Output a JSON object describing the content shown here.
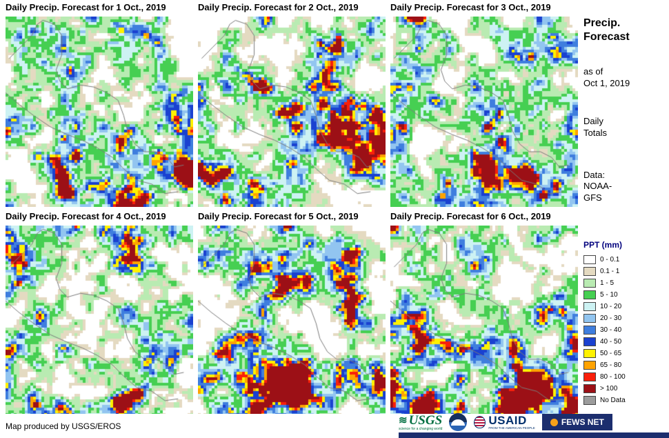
{
  "panels": [
    {
      "title": "Daily Precip. Forecast for 1 Oct., 2019"
    },
    {
      "title": "Daily Precip. Forecast for 2 Oct., 2019"
    },
    {
      "title": "Daily Precip. Forecast for 3 Oct., 2019"
    },
    {
      "title": "Daily Precip. Forecast for 4 Oct., 2019"
    },
    {
      "title": "Daily Precip. Forecast for 5 Oct., 2019"
    },
    {
      "title": "Daily Precip. Forecast for 6 Oct., 2019"
    }
  ],
  "sidebar": {
    "title_lines": [
      "Precip.",
      "Forecast"
    ],
    "as_of_lines": [
      "as of",
      "Oct 1, 2019"
    ],
    "totals_lines": [
      "Daily",
      "Totals"
    ],
    "data_lines": [
      "Data:",
      "NOAA-",
      "GFS"
    ]
  },
  "legend": {
    "title": "PPT (mm)",
    "items": [
      {
        "label": "0 - 0.1",
        "color": "#FFFFFF"
      },
      {
        "label": "0.1 - 1",
        "color": "#E4DAC1"
      },
      {
        "label": "1 - 5",
        "color": "#B9EBB2"
      },
      {
        "label": "5 - 10",
        "color": "#46CF52"
      },
      {
        "label": "10 - 20",
        "color": "#CDF2F3"
      },
      {
        "label": "20 - 30",
        "color": "#92C5F0"
      },
      {
        "label": "30 - 40",
        "color": "#3F7EDE"
      },
      {
        "label": "40 - 50",
        "color": "#1A41D0"
      },
      {
        "label": "50 - 65",
        "color": "#FFF200"
      },
      {
        "label": "65 - 80",
        "color": "#FFA300"
      },
      {
        "label": "80 - 100",
        "color": "#FA1F0A"
      },
      {
        "label": "> 100",
        "color": "#9C1016"
      },
      {
        "label": "No Data",
        "color": "#9C9C9C"
      }
    ]
  },
  "footer": {
    "credit": "Map produced by USGS/EROS"
  },
  "logos": {
    "usgs": {
      "text": "USGS",
      "tagline": "science for a changing world"
    },
    "usaid": {
      "text": "USAID",
      "tagline": "FROM THE AMERICAN PEOPLE"
    },
    "fewsnet": {
      "text": "FEWS NET"
    }
  }
}
